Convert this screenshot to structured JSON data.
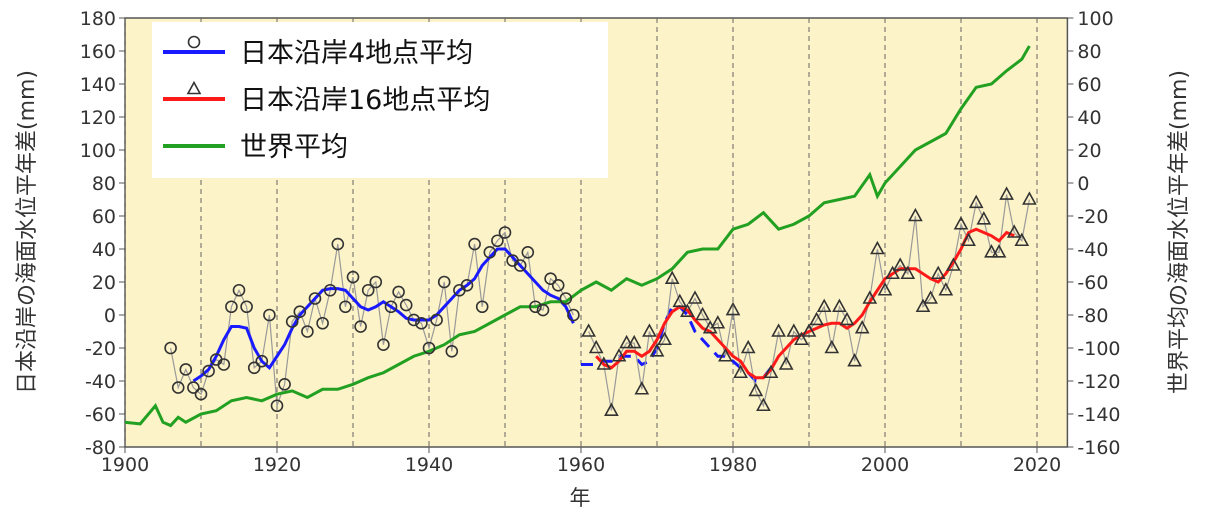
{
  "chart_data": {
    "type": "line",
    "x_label": "年",
    "y_label": "日本沿岸の海面水位平年差(mm)",
    "y2_label": "世界平均の海面水位平年差(mm)",
    "xlim": [
      1900,
      2024
    ],
    "xticks": [
      1900,
      1920,
      1940,
      1960,
      1980,
      2000,
      2020
    ],
    "ylim": [
      -80,
      180
    ],
    "yticks": [
      -80,
      -60,
      -40,
      -20,
      0,
      20,
      40,
      60,
      80,
      100,
      120,
      140,
      160,
      180
    ],
    "y2lim": [
      -160,
      100
    ],
    "y2ticks": [
      -160,
      -140,
      -120,
      -100,
      -80,
      -60,
      -40,
      -20,
      0,
      20,
      40,
      60,
      80,
      100
    ],
    "grid": true,
    "background": "#fdf3c8",
    "legend": "upper left",
    "series": [
      {
        "name": "日本沿岸4地点平均",
        "color": "#1a1aff",
        "marker": "circle",
        "dashed_from": 1960,
        "marker_x": [
          1906,
          1907,
          1908,
          1909,
          1910,
          1911,
          1912,
          1913,
          1914,
          1915,
          1916,
          1917,
          1918,
          1919,
          1920,
          1921,
          1922,
          1923,
          1924,
          1925,
          1926,
          1927,
          1928,
          1929,
          1930,
          1931,
          1932,
          1933,
          1934,
          1935,
          1936,
          1937,
          1938,
          1939,
          1940,
          1941,
          1942,
          1943,
          1944,
          1945,
          1946,
          1947,
          1948,
          1949,
          1950,
          1951,
          1952,
          1953,
          1954,
          1955,
          1956,
          1957,
          1958,
          1959
        ],
        "marker_values": [
          -20,
          -44,
          -33,
          -44,
          -48,
          -34,
          -27,
          -30,
          5,
          15,
          5,
          -32,
          -28,
          0,
          -55,
          -42,
          -4,
          2,
          -10,
          10,
          -5,
          15,
          43,
          5,
          23,
          -7,
          15,
          20,
          -18,
          5,
          14,
          6,
          -3,
          -5,
          -20,
          -3,
          20,
          -22,
          15,
          18,
          43,
          5,
          38,
          45,
          50,
          33,
          30,
          38,
          5,
          3,
          22,
          18,
          10,
          0
        ],
        "x": [
          1909,
          1910,
          1911,
          1912,
          1913,
          1914,
          1915,
          1916,
          1917,
          1918,
          1919,
          1920,
          1921,
          1922,
          1923,
          1924,
          1925,
          1926,
          1927,
          1928,
          1929,
          1930,
          1931,
          1932,
          1933,
          1934,
          1935,
          1936,
          1937,
          1938,
          1939,
          1940,
          1941,
          1942,
          1943,
          1944,
          1945,
          1946,
          1947,
          1948,
          1949,
          1950,
          1951,
          1952,
          1953,
          1954,
          1955,
          1956,
          1957,
          1958,
          1959,
          1960,
          1961,
          1962,
          1963,
          1964,
          1965,
          1966,
          1967,
          1968,
          1969,
          1970,
          1971,
          1972,
          1973,
          1974,
          1975,
          1976,
          1977,
          1978,
          1979,
          1980,
          1981,
          1982,
          1983,
          1984,
          1985
        ],
        "values": [
          -40,
          -37,
          -33,
          -25,
          -15,
          -7,
          -7,
          -8,
          -20,
          -28,
          -32,
          -25,
          -18,
          -8,
          0,
          5,
          10,
          15,
          16,
          16,
          15,
          10,
          5,
          3,
          5,
          8,
          5,
          2,
          -2,
          -3,
          -3,
          -3,
          0,
          5,
          10,
          15,
          18,
          22,
          30,
          35,
          40,
          40,
          35,
          30,
          25,
          20,
          15,
          12,
          10,
          5,
          -5,
          -30,
          -30,
          -30,
          -28,
          -28,
          -25,
          -25,
          -25,
          -30,
          -28,
          -20,
          -5,
          5,
          5,
          0,
          -10,
          -15,
          -20,
          -25,
          -25,
          -28,
          -32,
          -35,
          -40,
          -38,
          -32
        ]
      },
      {
        "name": "日本沿岸16地点平均",
        "color": "#ff1a1a",
        "marker": "triangle",
        "marker_x": [
          1961,
          1962,
          1963,
          1964,
          1965,
          1966,
          1967,
          1968,
          1969,
          1970,
          1971,
          1972,
          1973,
          1974,
          1975,
          1976,
          1977,
          1978,
          1979,
          1980,
          1981,
          1982,
          1983,
          1984,
          1985,
          1986,
          1987,
          1988,
          1989,
          1990,
          1991,
          1992,
          1993,
          1994,
          1995,
          1996,
          1997,
          1998,
          1999,
          2000,
          2001,
          2002,
          2003,
          2004,
          2005,
          2006,
          2007,
          2008,
          2009,
          2010,
          2011,
          2012,
          2013,
          2014,
          2015,
          2016,
          2017,
          2018,
          2019
        ],
        "marker_values": [
          -10,
          -20,
          -30,
          -58,
          -25,
          -17,
          -17,
          -45,
          -10,
          -22,
          -15,
          22,
          8,
          2,
          10,
          0,
          -8,
          -5,
          -25,
          3,
          -35,
          -20,
          -46,
          -55,
          -35,
          -10,
          -30,
          -10,
          -15,
          -10,
          -3,
          5,
          -20,
          5,
          -3,
          -28,
          -8,
          10,
          40,
          15,
          25,
          30,
          25,
          60,
          5,
          10,
          25,
          15,
          30,
          55,
          45,
          68,
          58,
          38,
          38,
          73,
          50,
          45,
          70
        ],
        "x": [
          1962,
          1963,
          1964,
          1965,
          1966,
          1967,
          1968,
          1969,
          1970,
          1971,
          1972,
          1973,
          1974,
          1975,
          1976,
          1977,
          1978,
          1979,
          1980,
          1981,
          1982,
          1983,
          1984,
          1985,
          1986,
          1987,
          1988,
          1989,
          1990,
          1991,
          1992,
          1993,
          1994,
          1995,
          1996,
          1997,
          1998,
          1999,
          2000,
          2001,
          2002,
          2003,
          2004,
          2005,
          2006,
          2007,
          2008,
          2009,
          2010,
          2011,
          2012,
          2013,
          2014,
          2015,
          2016,
          2017
        ],
        "values": [
          -25,
          -30,
          -32,
          -28,
          -22,
          -22,
          -25,
          -22,
          -15,
          -5,
          2,
          5,
          3,
          -3,
          -8,
          -10,
          -15,
          -20,
          -25,
          -28,
          -35,
          -38,
          -38,
          -33,
          -25,
          -20,
          -15,
          -12,
          -10,
          -8,
          -6,
          -5,
          -5,
          -8,
          -5,
          0,
          8,
          15,
          22,
          25,
          28,
          28,
          28,
          25,
          22,
          20,
          25,
          32,
          40,
          50,
          52,
          50,
          48,
          45,
          50,
          48
        ]
      },
      {
        "name": "世界平均",
        "color": "#22a022",
        "axis": "y2",
        "x": [
          1900,
          1902,
          1904,
          1905,
          1906,
          1907,
          1908,
          1910,
          1912,
          1914,
          1916,
          1918,
          1920,
          1922,
          1924,
          1926,
          1928,
          1930,
          1932,
          1934,
          1936,
          1938,
          1940,
          1942,
          1944,
          1946,
          1948,
          1950,
          1952,
          1954,
          1956,
          1958,
          1960,
          1962,
          1964,
          1966,
          1968,
          1970,
          1972,
          1974,
          1976,
          1978,
          1980,
          1982,
          1984,
          1986,
          1988,
          1990,
          1992,
          1994,
          1996,
          1998,
          1999,
          2000,
          2002,
          2004,
          2006,
          2008,
          2010,
          2012,
          2014,
          2016,
          2018,
          2019
        ],
        "values": [
          -145,
          -146,
          -135,
          -145,
          -147,
          -142,
          -145,
          -140,
          -138,
          -132,
          -130,
          -132,
          -128,
          -126,
          -130,
          -125,
          -125,
          -122,
          -118,
          -115,
          -110,
          -105,
          -102,
          -98,
          -92,
          -90,
          -85,
          -80,
          -75,
          -75,
          -72,
          -72,
          -65,
          -60,
          -65,
          -58,
          -62,
          -58,
          -52,
          -42,
          -40,
          -40,
          -28,
          -25,
          -18,
          -28,
          -25,
          -20,
          -12,
          -10,
          -8,
          5,
          -8,
          0,
          10,
          20,
          25,
          30,
          45,
          58,
          60,
          68,
          75,
          83
        ]
      }
    ]
  }
}
